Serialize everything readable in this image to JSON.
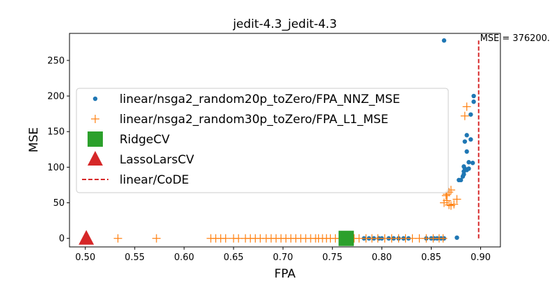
{
  "chart_data": {
    "type": "scatter",
    "title": "jedit-4.3_jedit-4.3",
    "xlabel": "FPA",
    "ylabel": "MSE",
    "xlim": [
      0.484,
      0.92
    ],
    "ylim": [
      -12,
      288
    ],
    "xticks": [
      0.5,
      0.55,
      0.6,
      0.65,
      0.7,
      0.75,
      0.8,
      0.85,
      0.9
    ],
    "xtick_labels": [
      "0.50",
      "0.55",
      "0.60",
      "0.65",
      "0.70",
      "0.75",
      "0.80",
      "0.85",
      "0.90"
    ],
    "yticks": [
      0,
      50,
      100,
      150,
      200,
      250
    ],
    "ytick_labels": [
      "0",
      "50",
      "100",
      "150",
      "200",
      "250"
    ],
    "annotation": {
      "text": "MSE = 376200.",
      "x": 0.898,
      "y": 278
    },
    "legend_position": "center-left",
    "series": [
      {
        "name": "linear/nsga2_random20p_toZero/FPA_NNZ_MSE",
        "marker": "dot",
        "color": "#1f77b4",
        "points": [
          [
            0.782,
            0
          ],
          [
            0.787,
            0
          ],
          [
            0.792,
            0
          ],
          [
            0.797,
            0
          ],
          [
            0.8,
            0
          ],
          [
            0.807,
            0
          ],
          [
            0.812,
            0
          ],
          [
            0.817,
            0
          ],
          [
            0.822,
            0
          ],
          [
            0.827,
            0
          ],
          [
            0.845,
            0
          ],
          [
            0.85,
            0
          ],
          [
            0.853,
            0
          ],
          [
            0.856,
            0
          ],
          [
            0.86,
            0
          ],
          [
            0.863,
            0
          ],
          [
            0.876,
            1
          ],
          [
            0.863,
            278
          ],
          [
            0.878,
            82
          ],
          [
            0.88,
            82
          ],
          [
            0.882,
            87
          ],
          [
            0.883,
            90
          ],
          [
            0.883,
            94
          ],
          [
            0.884,
            98
          ],
          [
            0.886,
            96
          ],
          [
            0.883,
            101
          ],
          [
            0.888,
            98
          ],
          [
            0.892,
            106
          ],
          [
            0.888,
            107
          ],
          [
            0.886,
            122
          ],
          [
            0.884,
            136
          ],
          [
            0.886,
            145
          ],
          [
            0.89,
            139
          ],
          [
            0.89,
            174
          ],
          [
            0.893,
            192
          ],
          [
            0.893,
            200
          ]
        ]
      },
      {
        "name": "linear/nsga2_random30p_toZero/FPA_L1_MSE",
        "marker": "plus",
        "color": "#ff7f0e",
        "points": [
          [
            0.533,
            0
          ],
          [
            0.572,
            0
          ],
          [
            0.627,
            0
          ],
          [
            0.632,
            0
          ],
          [
            0.637,
            0
          ],
          [
            0.642,
            0
          ],
          [
            0.65,
            0
          ],
          [
            0.655,
            0
          ],
          [
            0.662,
            0
          ],
          [
            0.667,
            0
          ],
          [
            0.672,
            0
          ],
          [
            0.677,
            0
          ],
          [
            0.683,
            0
          ],
          [
            0.688,
            0
          ],
          [
            0.693,
            0
          ],
          [
            0.698,
            0
          ],
          [
            0.703,
            0
          ],
          [
            0.708,
            0
          ],
          [
            0.713,
            0
          ],
          [
            0.718,
            0
          ],
          [
            0.723,
            0
          ],
          [
            0.728,
            0
          ],
          [
            0.733,
            0
          ],
          [
            0.736,
            0
          ],
          [
            0.74,
            0
          ],
          [
            0.744,
            0
          ],
          [
            0.748,
            0
          ],
          [
            0.753,
            0
          ],
          [
            0.758,
            0
          ],
          [
            0.762,
            0
          ],
          [
            0.767,
            0
          ],
          [
            0.772,
            0
          ],
          [
            0.777,
            0
          ],
          [
            0.784,
            0
          ],
          [
            0.79,
            0
          ],
          [
            0.796,
            0
          ],
          [
            0.803,
            0
          ],
          [
            0.81,
            0
          ],
          [
            0.817,
            0
          ],
          [
            0.824,
            0
          ],
          [
            0.831,
            0
          ],
          [
            0.838,
            0
          ],
          [
            0.845,
            0
          ],
          [
            0.852,
            0
          ],
          [
            0.858,
            0
          ],
          [
            0.862,
            0
          ],
          [
            0.863,
            50
          ],
          [
            0.866,
            53
          ],
          [
            0.868,
            47
          ],
          [
            0.87,
            46
          ],
          [
            0.873,
            48
          ],
          [
            0.876,
            55
          ],
          [
            0.865,
            60
          ],
          [
            0.868,
            65
          ],
          [
            0.87,
            68
          ],
          [
            0.866,
            62
          ],
          [
            0.884,
            172
          ],
          [
            0.886,
            185
          ]
        ]
      },
      {
        "name": "RidgeCV",
        "marker": "square",
        "color": "#2ca02c",
        "points": [
          [
            0.764,
            0
          ]
        ]
      },
      {
        "name": "LassoLarsCV",
        "marker": "triangle",
        "color": "#d62728",
        "points": [
          [
            0.501,
            0
          ]
        ]
      },
      {
        "name": "linear/CoDE",
        "marker": "dashed-line",
        "color": "#d62728",
        "segment": {
          "x": 0.898,
          "y": [
            0,
            278
          ]
        }
      }
    ]
  }
}
